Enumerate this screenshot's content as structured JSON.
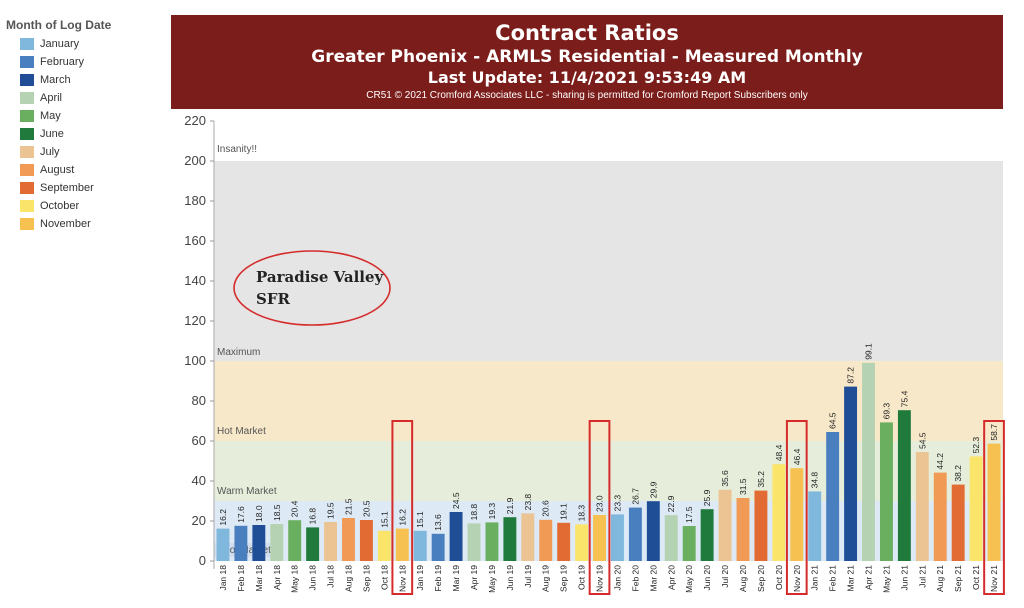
{
  "legend": {
    "title": "Month of Log Date",
    "items": [
      {
        "label": "January",
        "color": "#7fb7dd"
      },
      {
        "label": "February",
        "color": "#4a7fbf"
      },
      {
        "label": "March",
        "color": "#1f4e96"
      },
      {
        "label": "April",
        "color": "#b5d3b2"
      },
      {
        "label": "May",
        "color": "#6aae60"
      },
      {
        "label": "June",
        "color": "#1f7a3c"
      },
      {
        "label": "July",
        "color": "#ecc493"
      },
      {
        "label": "August",
        "color": "#f09a55"
      },
      {
        "label": "September",
        "color": "#e26a33"
      },
      {
        "label": "October",
        "color": "#fbe46a"
      },
      {
        "label": "November",
        "color": "#f6c150"
      }
    ]
  },
  "header": {
    "title": "Contract Ratios",
    "subtitle": "Greater Phoenix - ARMLS Residential - Measured Monthly",
    "update": "Last Update: 11/4/2021 9:53:49 AM",
    "copyright": "CR51 © 2021 Cromford Associates LLC - sharing is permitted for Cromford Report Subscribers only"
  },
  "annotation": {
    "line1": "Paradise Valley",
    "line2": "SFR"
  },
  "chart_data": {
    "type": "bar",
    "ylim": [
      0,
      220
    ],
    "yticks": [
      0,
      20,
      40,
      60,
      80,
      100,
      120,
      140,
      160,
      180,
      200,
      220
    ],
    "zones": [
      {
        "label": "Insanity!!",
        "from": 100,
        "to": 200,
        "color": "#e5e5e5"
      },
      {
        "label": "Maximum",
        "from": 60,
        "to": 100,
        "color": "#f7e8c9"
      },
      {
        "label": "Hot Market",
        "from": 30,
        "to": 60,
        "color": "#e6eedb"
      },
      {
        "label": "Warm Market",
        "from": 0,
        "to": 30,
        "color": "#dde9f4"
      },
      {
        "label": "Cool Market",
        "from": 0,
        "to": 0,
        "color": "#cfdced"
      }
    ],
    "categories": [
      "Jan 18",
      "Feb 18",
      "Mar 18",
      "Apr 18",
      "May 18",
      "Jun 18",
      "Jul 18",
      "Aug 18",
      "Sep 18",
      "Oct 18",
      "Nov 18",
      "Jan 19",
      "Feb 19",
      "Mar 19",
      "Apr 19",
      "May 19",
      "Jun 19",
      "Jul 19",
      "Aug 19",
      "Sep 19",
      "Oct 19",
      "Nov 19",
      "Jan 20",
      "Feb 20",
      "Mar 20",
      "Apr 20",
      "May 20",
      "Jun 20",
      "Jul 20",
      "Aug 20",
      "Sep 20",
      "Oct 20",
      "Nov 20",
      "Jan 21",
      "Feb 21",
      "Mar 21",
      "Apr 21",
      "May 21",
      "Jun 21",
      "Jul 21",
      "Aug 21",
      "Sep 21",
      "Oct 21",
      "Nov 21"
    ],
    "values": [
      16.2,
      17.6,
      18.0,
      18.5,
      20.4,
      16.8,
      19.5,
      21.5,
      20.5,
      15.1,
      16.2,
      15.1,
      13.6,
      24.5,
      18.8,
      19.3,
      21.9,
      23.8,
      20.6,
      19.1,
      18.3,
      23.0,
      23.3,
      26.7,
      29.9,
      22.9,
      17.5,
      25.9,
      35.6,
      31.5,
      35.2,
      48.4,
      46.4,
      34.8,
      64.5,
      87.2,
      99.1,
      69.3,
      75.4,
      54.5,
      44.2,
      38.2,
      52.3,
      58.7
    ],
    "value_labels": [
      "16.2",
      "17.6",
      "18.0",
      "18.5",
      "20.4",
      "16.8",
      "19.5",
      "21.5",
      "20.5",
      "15.1",
      "16.2",
      "15.1",
      "13.6",
      "24.5",
      "18.8",
      "19.3",
      "21.9",
      "23.8",
      "20.6",
      "19.1",
      "18.3",
      "23.0",
      "23.3",
      "26.7",
      "29.9",
      "22.9",
      "17.5",
      "25.9",
      "35.6",
      "31.5",
      "35.2",
      "48.4",
      "46.4",
      "34.8",
      "64.5",
      "87.2",
      "99.1",
      "69.3",
      "75.4",
      "54.5",
      "44.2",
      "38.2",
      "52.3",
      "58.7"
    ],
    "colors": [
      "#7fb7dd",
      "#4a7fbf",
      "#1f4e96",
      "#b5d3b2",
      "#6aae60",
      "#1f7a3c",
      "#ecc493",
      "#f09a55",
      "#e26a33",
      "#fbe46a",
      "#f6c150",
      "#7fb7dd",
      "#4a7fbf",
      "#1f4e96",
      "#b5d3b2",
      "#6aae60",
      "#1f7a3c",
      "#ecc493",
      "#f09a55",
      "#e26a33",
      "#fbe46a",
      "#f6c150",
      "#7fb7dd",
      "#4a7fbf",
      "#1f4e96",
      "#b5d3b2",
      "#6aae60",
      "#1f7a3c",
      "#ecc493",
      "#f09a55",
      "#e26a33",
      "#fbe46a",
      "#f6c150",
      "#7fb7dd",
      "#4a7fbf",
      "#1f4e96",
      "#b5d3b2",
      "#6aae60",
      "#1f7a3c",
      "#ecc493",
      "#f09a55",
      "#e26a33",
      "#fbe46a",
      "#f6c150"
    ],
    "highlighted": [
      "Nov 18",
      "Nov 19",
      "Nov 20",
      "Nov 21"
    ],
    "highlight_color": "#d62b2b"
  }
}
